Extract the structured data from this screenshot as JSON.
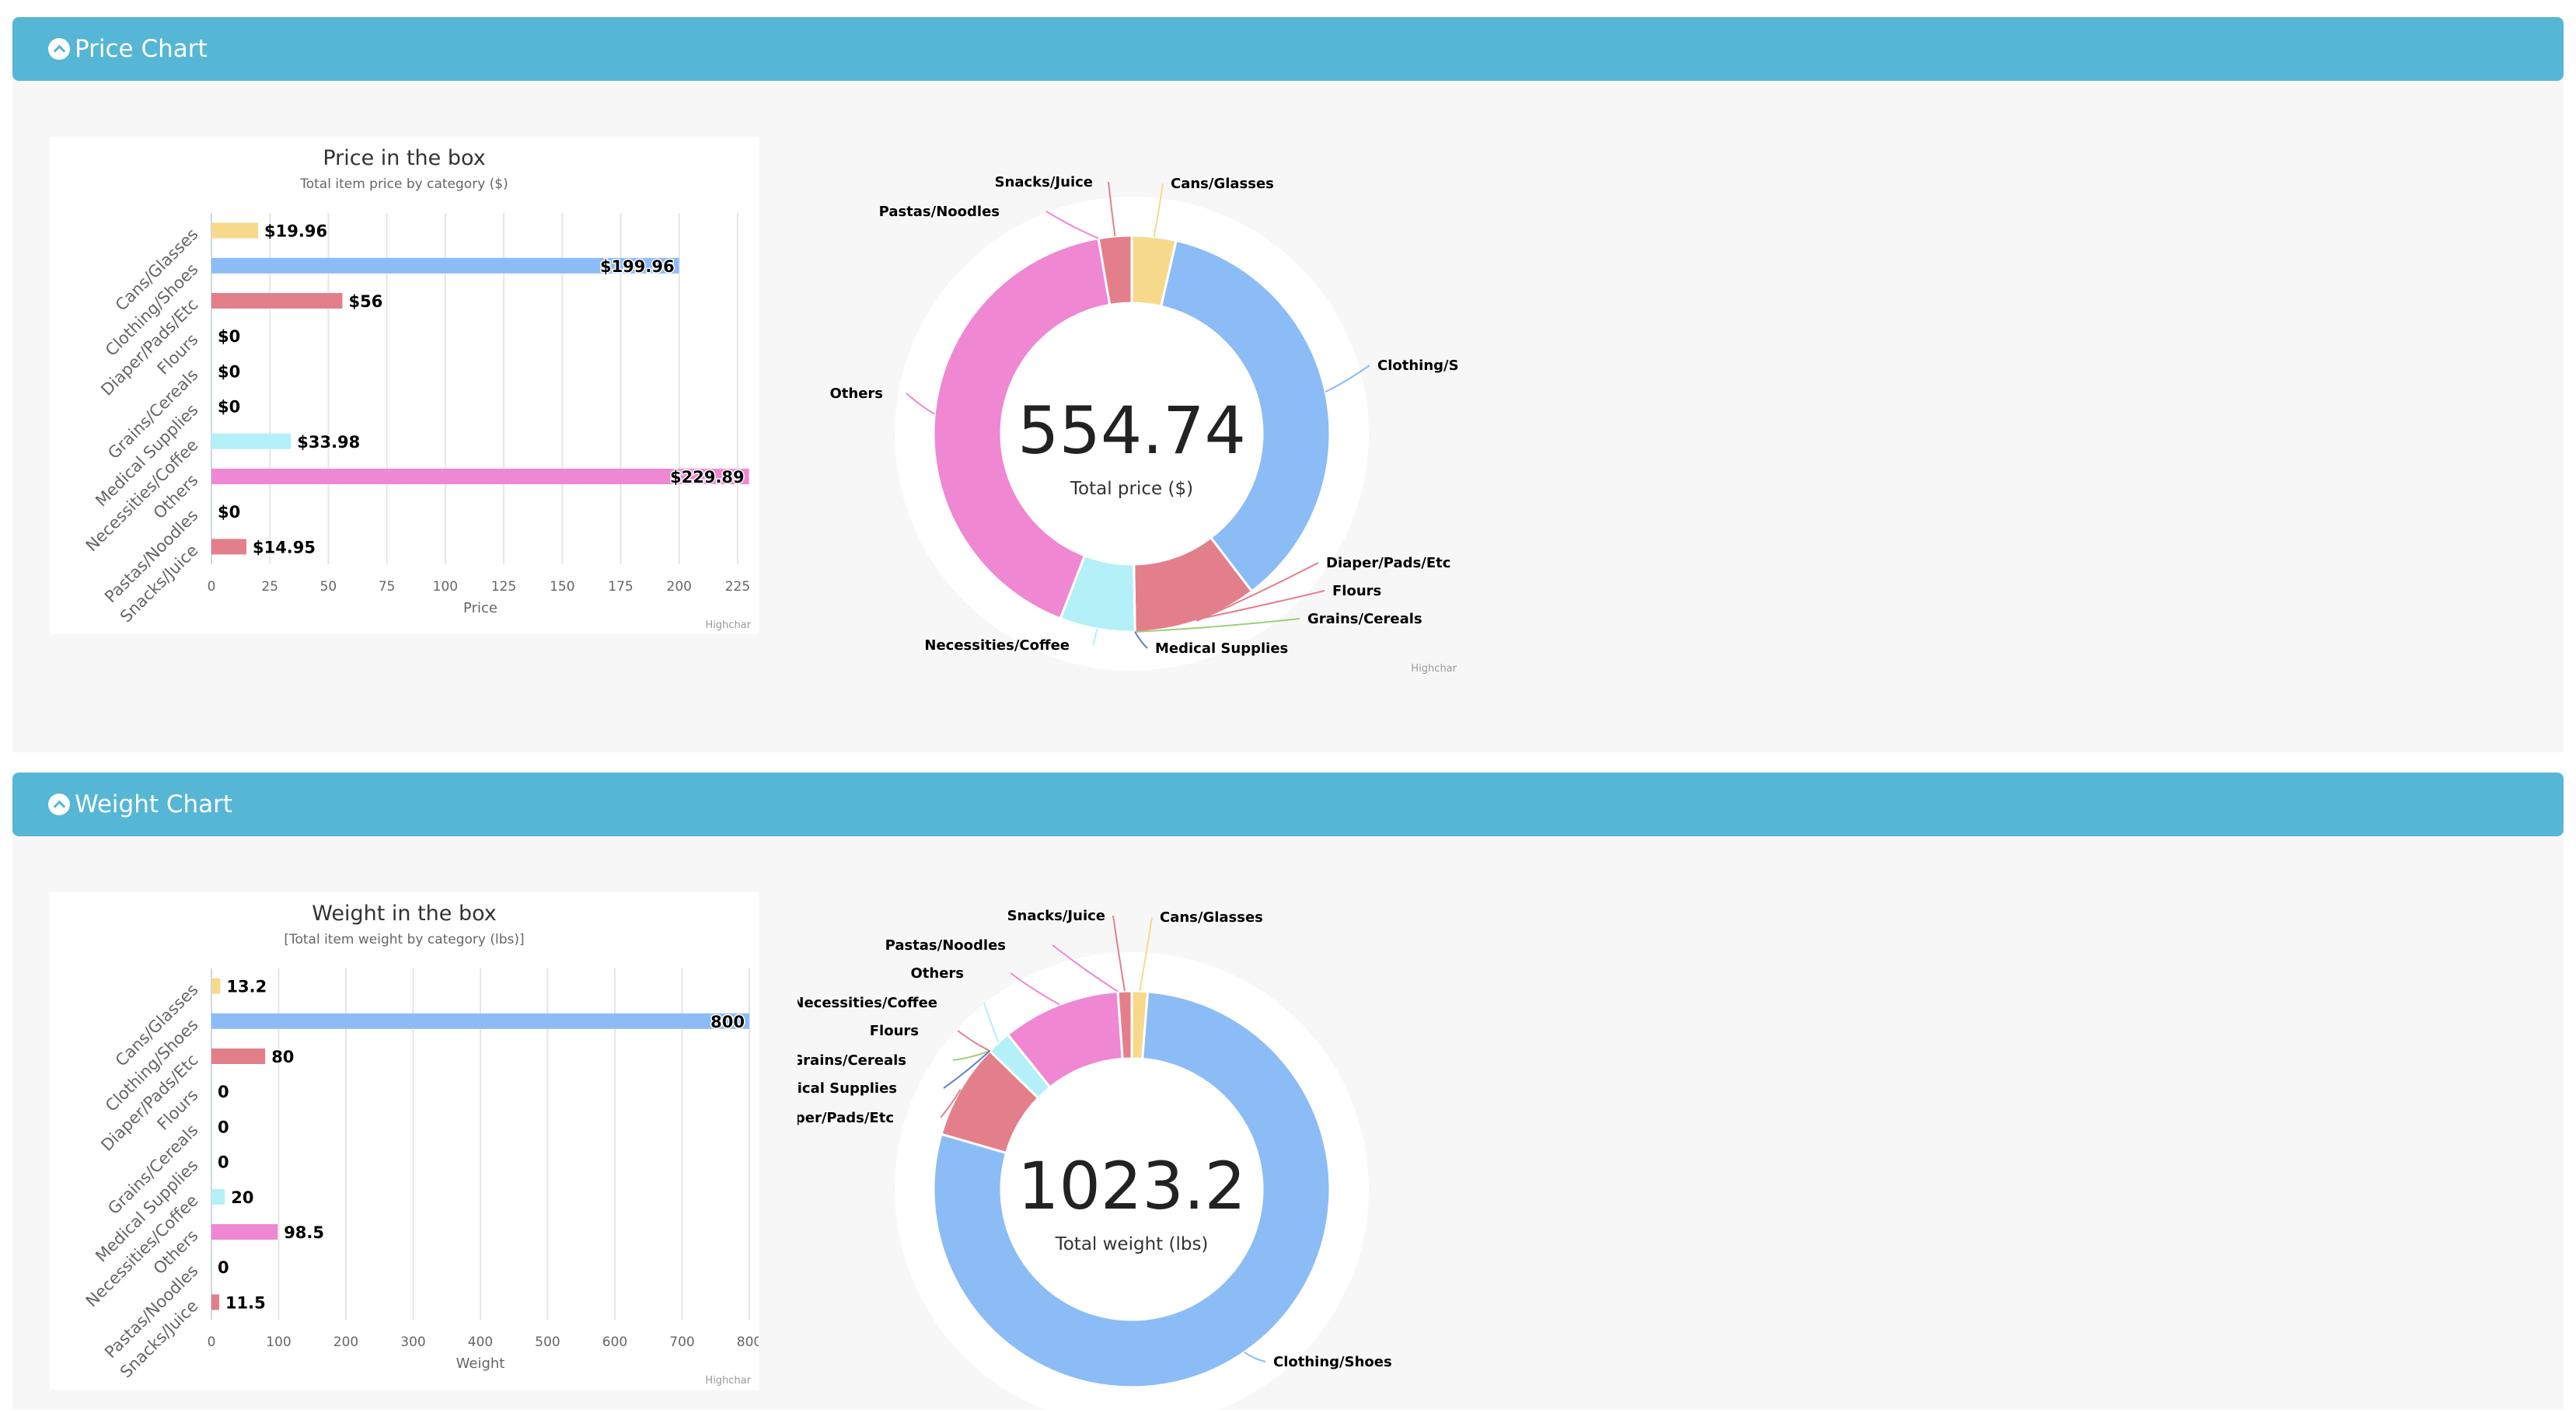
{
  "price_panel": {
    "title": "Price Chart",
    "bar_chart": {
      "type": "bar",
      "title": "Price in the box",
      "subtitle": "Total item price by category ($)",
      "xlabel": "Price",
      "credit": "Highchar",
      "categories": [
        "Cans/Glasses",
        "Clothing/Shoes",
        "Diaper/Pads/Etc",
        "Flours",
        "Grains/Cereals",
        "Medical Supplies",
        "Necessities/Coffee",
        "Others",
        "Pastas/Noodles",
        "Snacks/Juice"
      ],
      "values": [
        19.96,
        199.96,
        56,
        0,
        0,
        0,
        33.98,
        229.89,
        0,
        14.95
      ],
      "labels": [
        "$19.96",
        "$199.96",
        "$56",
        "$0",
        "$0",
        "$0",
        "$33.98",
        "$229.89",
        "$0",
        "$14.95"
      ],
      "ticks": [
        0,
        25,
        50,
        75,
        100,
        125,
        150,
        175,
        200,
        225
      ],
      "xlim": [
        0,
        230
      ],
      "colors": [
        "#f7d98b",
        "#8cbcf5",
        "#e37f8b",
        "#e37f8b",
        "#e37f8b",
        "#e37f8b",
        "#b3f0f7",
        "#ef87d3",
        "#e37f8b",
        "#e37f8b"
      ]
    },
    "donut": {
      "type": "pie",
      "center_value": "554.74",
      "center_label": "Total price ($)",
      "credit": "Highchar",
      "slices": [
        {
          "name": "Cans/Glasses",
          "value": 19.96,
          "color": "#f7d98b"
        },
        {
          "name": "Clothing/Shoes",
          "value": 199.96,
          "color": "#8cbcf5"
        },
        {
          "name": "Diaper/Pads/Etc",
          "value": 56,
          "color": "#e37f8b"
        },
        {
          "name": "Flours",
          "value": 0,
          "color": "#e37f8b"
        },
        {
          "name": "Grains/Cereals",
          "value": 0,
          "color": "#9ccf7a"
        },
        {
          "name": "Medical Supplies",
          "value": 0,
          "color": "#5d7fc7"
        },
        {
          "name": "Necessities/Coffee",
          "value": 33.98,
          "color": "#b3f0f7"
        },
        {
          "name": "Others",
          "value": 229.89,
          "color": "#ef87d3"
        },
        {
          "name": "Pastas/Noodles",
          "value": 0,
          "color": "#ef87d3"
        },
        {
          "name": "Snacks/Juice",
          "value": 14.95,
          "color": "#e37f8b"
        }
      ],
      "labels": [
        "Snacks/Juice",
        "Cans/Glasses",
        "Pastas/Noodles",
        "Clothing/S",
        "Others",
        "Diaper/Pads/Etc",
        "Flours",
        "Grains/Cereals",
        "Necessities/Coffee",
        "Medical Supplies"
      ]
    }
  },
  "weight_panel": {
    "title": "Weight Chart",
    "bar_chart": {
      "type": "bar",
      "title": "Weight in the box",
      "subtitle": "[Total item weight by category (lbs)]",
      "xlabel": "Weight",
      "credit": "Highchar",
      "categories": [
        "Cans/Glasses",
        "Clothing/Shoes",
        "Diaper/Pads/Etc",
        "Flours",
        "Grains/Cereals",
        "Medical Supplies",
        "Necessities/Coffee",
        "Others",
        "Pastas/Noodles",
        "Snacks/Juice"
      ],
      "values": [
        13.2,
        800,
        80,
        0,
        0,
        0,
        20,
        98.5,
        0,
        11.5
      ],
      "labels": [
        "13.2",
        "800",
        "80",
        "0",
        "0",
        "0",
        "20",
        "98.5",
        "0",
        "11.5"
      ],
      "ticks": [
        0,
        100,
        200,
        300,
        400,
        500,
        600,
        700,
        800
      ],
      "xlim": [
        0,
        800
      ],
      "colors": [
        "#f7d98b",
        "#8cbcf5",
        "#e37f8b",
        "#e37f8b",
        "#e37f8b",
        "#e37f8b",
        "#b3f0f7",
        "#ef87d3",
        "#e37f8b",
        "#e37f8b"
      ]
    },
    "donut": {
      "type": "pie",
      "center_value": "1023.2",
      "center_label": "Total weight (lbs)",
      "slices": [
        {
          "name": "Cans/Glasses",
          "value": 13.2,
          "color": "#f7d98b"
        },
        {
          "name": "Clothing/Shoes",
          "value": 800,
          "color": "#8cbcf5"
        },
        {
          "name": "Diaper/Pads/Etc",
          "value": 80,
          "color": "#e37f8b"
        },
        {
          "name": "Flours",
          "value": 0,
          "color": "#e37f8b"
        },
        {
          "name": "Grains/Cereals",
          "value": 0,
          "color": "#9ccf7a"
        },
        {
          "name": "Medical Supplies",
          "value": 0,
          "color": "#5d7fc7"
        },
        {
          "name": "Necessities/Coffee",
          "value": 20,
          "color": "#b3f0f7"
        },
        {
          "name": "Others",
          "value": 98.5,
          "color": "#ef87d3"
        },
        {
          "name": "Pastas/Noodles",
          "value": 0,
          "color": "#ef87d3"
        },
        {
          "name": "Snacks/Juice",
          "value": 11.5,
          "color": "#e37f8b"
        }
      ],
      "labels": [
        "Snacks/Juice",
        "Cans/Glasses",
        "Pastas/Noodles",
        "Others",
        "Necessities/Coffee",
        "Flours",
        "Grains/Cereals",
        "Medical Supplies",
        "Diaper/Pads/Etc",
        "Clothing/Shoes"
      ]
    }
  },
  "chart_data": [
    {
      "type": "bar",
      "title": "Price in the box",
      "subtitle": "Total item price by category ($)",
      "xlabel": "Price",
      "categories": [
        "Cans/Glasses",
        "Clothing/Shoes",
        "Diaper/Pads/Etc",
        "Flours",
        "Grains/Cereals",
        "Medical Supplies",
        "Necessities/Coffee",
        "Others",
        "Pastas/Noodles",
        "Snacks/Juice"
      ],
      "values": [
        19.96,
        199.96,
        56,
        0,
        0,
        0,
        33.98,
        229.89,
        0,
        14.95
      ],
      "xlim": [
        0,
        230
      ]
    },
    {
      "type": "pie",
      "title": "",
      "center_value": "554.74",
      "center_label": "Total price ($)",
      "categories": [
        "Cans/Glasses",
        "Clothing/Shoes",
        "Diaper/Pads/Etc",
        "Flours",
        "Grains/Cereals",
        "Medical Supplies",
        "Necessities/Coffee",
        "Others",
        "Pastas/Noodles",
        "Snacks/Juice"
      ],
      "values": [
        19.96,
        199.96,
        56,
        0,
        0,
        0,
        33.98,
        229.89,
        0,
        14.95
      ]
    },
    {
      "type": "bar",
      "title": "Weight in the box",
      "subtitle": "[Total item weight by category (lbs)]",
      "xlabel": "Weight",
      "categories": [
        "Cans/Glasses",
        "Clothing/Shoes",
        "Diaper/Pads/Etc",
        "Flours",
        "Grains/Cereals",
        "Medical Supplies",
        "Necessities/Coffee",
        "Others",
        "Pastas/Noodles",
        "Snacks/Juice"
      ],
      "values": [
        13.2,
        800,
        80,
        0,
        0,
        0,
        20,
        98.5,
        0,
        11.5
      ],
      "xlim": [
        0,
        800
      ]
    },
    {
      "type": "pie",
      "title": "",
      "center_value": "1023.2",
      "center_label": "Total weight (lbs)",
      "categories": [
        "Cans/Glasses",
        "Clothing/Shoes",
        "Diaper/Pads/Etc",
        "Flours",
        "Grains/Cereals",
        "Medical Supplies",
        "Necessities/Coffee",
        "Others",
        "Pastas/Noodles",
        "Snacks/Juice"
      ],
      "values": [
        13.2,
        800,
        80,
        0,
        0,
        0,
        20,
        98.5,
        0,
        11.5
      ]
    }
  ]
}
